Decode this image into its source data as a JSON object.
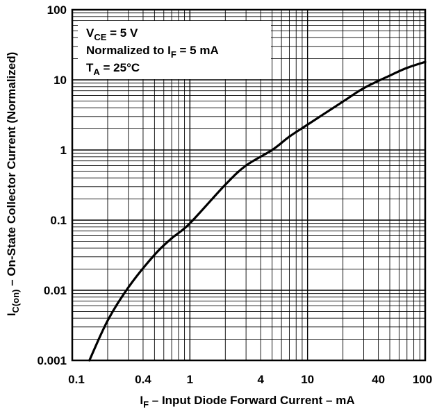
{
  "chart_data": {
    "type": "line",
    "title": "",
    "xlabel": {
      "main": "I",
      "sub": "F",
      "rest": " – Input Diode Forward Current – mA"
    },
    "ylabel": {
      "main": "I",
      "sub": "C(on)",
      "rest": " – On-State Collector Current (Normalized)"
    },
    "x_scale": "log",
    "y_scale": "log",
    "xlim": [
      0.1,
      100
    ],
    "ylim": [
      0.001,
      100
    ],
    "x_tick_labels": [
      {
        "value": 0.1,
        "label": "0.1"
      },
      {
        "value": 0.4,
        "label": "0.4"
      },
      {
        "value": 1,
        "label": "1"
      },
      {
        "value": 4,
        "label": "4"
      },
      {
        "value": 10,
        "label": "10"
      },
      {
        "value": 40,
        "label": "40"
      },
      {
        "value": 100,
        "label": "100"
      }
    ],
    "y_tick_labels": [
      {
        "value": 0.001,
        "label": "0.001"
      },
      {
        "value": 0.01,
        "label": "0.01"
      },
      {
        "value": 0.1,
        "label": "0.1"
      },
      {
        "value": 1,
        "label": "1"
      },
      {
        "value": 10,
        "label": "10"
      },
      {
        "value": 100,
        "label": "100"
      }
    ],
    "grid": true,
    "annotations": [
      {
        "main": "V",
        "sub": "CE",
        "rest": " = 5 V"
      },
      {
        "main": "Normalized to I",
        "sub": "F",
        "rest": " = 5 mA"
      },
      {
        "main": "T",
        "sub": "A",
        "rest": " = 25°C"
      }
    ],
    "series": [
      {
        "x": [
          0.14,
          0.2,
          0.3,
          0.5,
          0.7,
          1,
          2,
          3,
          5,
          7,
          10,
          20,
          30,
          50,
          70,
          100
        ],
        "y": [
          0.001,
          0.0037,
          0.011,
          0.032,
          0.055,
          0.09,
          0.32,
          0.6,
          1.0,
          1.55,
          2.3,
          4.9,
          7.6,
          11.5,
          14.8,
          18.0
        ]
      }
    ]
  }
}
